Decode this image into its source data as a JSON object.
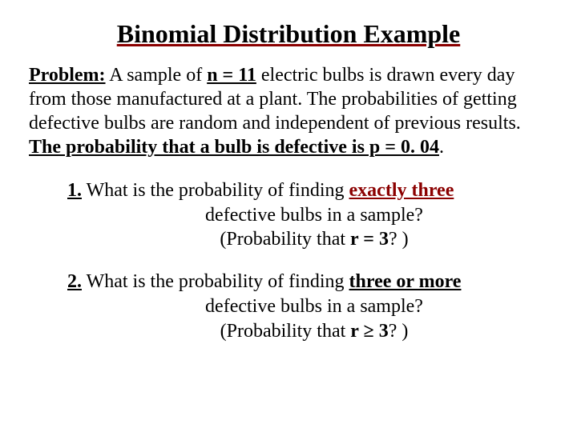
{
  "title": "Binomial Distribution Example",
  "problem": {
    "label": "Problem:",
    "part1": " A sample of ",
    "n_eq": "n = 11",
    "part2": " electric bulbs is drawn every day from those manufactured at a plant. The probabilities of getting defective bulbs are random and independent of previous results. ",
    "prob_statement": "The probability that a bulb is defective is p = 0. 04",
    "period": "."
  },
  "q1": {
    "num": "1.",
    "line1a": " What is the probability of finding ",
    "emph": "exactly three",
    "line2": "defective bulbs in a sample?",
    "line3a": "(Probability that ",
    "r_cond": "r = 3",
    "line3b": "? )"
  },
  "q2": {
    "num": "2.",
    "line1a": " What is the probability of finding ",
    "emph": "three or more",
    "line2": "defective bulbs in a sample?",
    "line3a": "(Probability that ",
    "r_cond": "r ≥ 3",
    "line3b": "? )"
  },
  "colors": {
    "title_underline": "#8b0000",
    "emphasis": "#8b0000",
    "text": "#000000",
    "background": "#ffffff"
  },
  "typography": {
    "title_fontsize": 32,
    "body_fontsize": 24,
    "font_family": "Times New Roman"
  }
}
